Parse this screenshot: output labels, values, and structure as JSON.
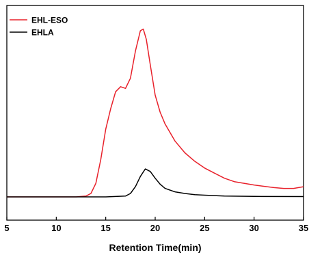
{
  "chart_data": {
    "type": "line",
    "title": "",
    "xlabel": "Retention Time(min)",
    "ylabel": "",
    "xlim": [
      5,
      35
    ],
    "xticks": [
      5,
      10,
      15,
      20,
      25,
      30,
      35
    ],
    "y_ticks_shown": false,
    "grid": false,
    "legend_position": "top-left",
    "series": [
      {
        "name": "EHL-ESO",
        "color": "#e8202a",
        "x": [
          5,
          10,
          12,
          13,
          13.5,
          14,
          14.5,
          15,
          15.5,
          16,
          16.5,
          17,
          17.5,
          18,
          18.5,
          18.8,
          19.1,
          19.5,
          20,
          20.5,
          21,
          22,
          23,
          24,
          25,
          26,
          27,
          28,
          30,
          32,
          33,
          34,
          35
        ],
        "y": [
          0,
          0,
          0,
          0.005,
          0.02,
          0.08,
          0.22,
          0.4,
          0.52,
          0.62,
          0.65,
          0.64,
          0.7,
          0.86,
          0.98,
          0.99,
          0.93,
          0.78,
          0.6,
          0.5,
          0.43,
          0.33,
          0.26,
          0.21,
          0.17,
          0.14,
          0.11,
          0.09,
          0.07,
          0.055,
          0.05,
          0.05,
          0.06
        ]
      },
      {
        "name": "EHLA",
        "color": "#000000",
        "x": [
          5,
          10,
          15,
          17,
          17.5,
          18,
          18.5,
          19,
          19.5,
          20,
          20.5,
          21,
          22,
          23,
          24,
          25,
          27,
          30,
          35
        ],
        "y": [
          0,
          0,
          0,
          0.005,
          0.02,
          0.06,
          0.12,
          0.165,
          0.15,
          0.11,
          0.075,
          0.05,
          0.03,
          0.02,
          0.013,
          0.01,
          0.005,
          0.003,
          0.002
        ]
      }
    ]
  }
}
